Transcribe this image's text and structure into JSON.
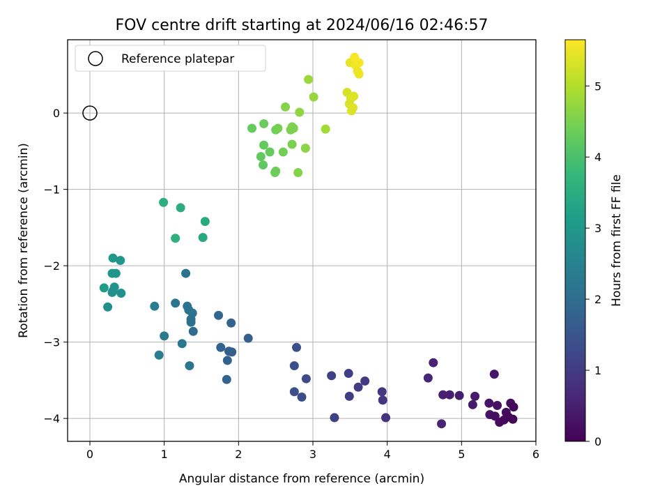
{
  "chart_data": {
    "type": "scatter",
    "title": "FOV centre drift starting at 2024/06/16 02:46:57",
    "xlabel": "Angular distance from reference (arcmin)",
    "ylabel": "Rotation from reference (arcmin)",
    "xlim": [
      -0.3,
      6.0
    ],
    "ylim": [
      -4.3,
      0.96
    ],
    "xticks": [
      0,
      1,
      2,
      3,
      4,
      5,
      6
    ],
    "xtick_labels": [
      "0",
      "1",
      "2",
      "3",
      "4",
      "5",
      "6"
    ],
    "yticks": [
      0,
      -1,
      -2,
      -3,
      -4
    ],
    "ytick_labels": [
      "0",
      "−1",
      "−2",
      "−3",
      "−4"
    ],
    "grid": true,
    "legend": {
      "position": "top-left",
      "entries": [
        {
          "label": "Reference platepar",
          "marker": "open-circle"
        }
      ]
    },
    "reference_point": {
      "x": 0,
      "y": 0
    },
    "colorbar": {
      "label": "Hours from first FF file",
      "colormap": "viridis",
      "range": [
        0,
        5.65
      ],
      "ticks": [
        0,
        1,
        2,
        3,
        4,
        5
      ],
      "tick_labels": [
        "0",
        "1",
        "2",
        "3",
        "4",
        "5"
      ],
      "colors": [
        "#440154",
        "#482878",
        "#3e4989",
        "#31688e",
        "#26828e",
        "#1f9e89",
        "#35b779",
        "#6ece58",
        "#b5de2b",
        "#fde725"
      ]
    },
    "points": [
      {
        "x": 5.44,
        "y": -3.42,
        "t": 0.35
      },
      {
        "x": 5.66,
        "y": -3.8,
        "t": 0.2
      },
      {
        "x": 5.7,
        "y": -3.85,
        "t": 0.1
      },
      {
        "x": 5.37,
        "y": -3.8,
        "t": 0.3
      },
      {
        "x": 5.48,
        "y": -3.83,
        "t": 0.25
      },
      {
        "x": 5.6,
        "y": -3.92,
        "t": 0.15
      },
      {
        "x": 5.38,
        "y": -3.95,
        "t": 0.28
      },
      {
        "x": 5.45,
        "y": -3.97,
        "t": 0.22
      },
      {
        "x": 5.51,
        "y": -4.05,
        "t": 0.18
      },
      {
        "x": 5.57,
        "y": -4.02,
        "t": 0.12
      },
      {
        "x": 5.69,
        "y": -4.01,
        "t": 0.05
      },
      {
        "x": 5.63,
        "y": -3.98,
        "t": 0.08
      },
      {
        "x": 4.62,
        "y": -3.27,
        "t": 0.55
      },
      {
        "x": 4.55,
        "y": -3.47,
        "t": 0.6
      },
      {
        "x": 4.75,
        "y": -3.69,
        "t": 0.5
      },
      {
        "x": 4.84,
        "y": -3.69,
        "t": 0.48
      },
      {
        "x": 4.97,
        "y": -3.7,
        "t": 0.45
      },
      {
        "x": 5.18,
        "y": -3.71,
        "t": 0.4
      },
      {
        "x": 5.15,
        "y": -3.82,
        "t": 0.42
      },
      {
        "x": 4.73,
        "y": -4.07,
        "t": 0.58
      },
      {
        "x": 3.48,
        "y": -3.41,
        "t": 1.05
      },
      {
        "x": 3.25,
        "y": -3.44,
        "t": 1.1
      },
      {
        "x": 3.7,
        "y": -3.51,
        "t": 0.98
      },
      {
        "x": 3.61,
        "y": -3.59,
        "t": 1.0
      },
      {
        "x": 3.93,
        "y": -3.65,
        "t": 0.9
      },
      {
        "x": 3.94,
        "y": -3.76,
        "t": 0.88
      },
      {
        "x": 3.49,
        "y": -3.71,
        "t": 1.02
      },
      {
        "x": 3.29,
        "y": -3.99,
        "t": 1.08
      },
      {
        "x": 3.98,
        "y": -3.99,
        "t": 0.85
      },
      {
        "x": 2.78,
        "y": -3.07,
        "t": 1.35
      },
      {
        "x": 2.75,
        "y": -3.31,
        "t": 1.4
      },
      {
        "x": 2.91,
        "y": -3.48,
        "t": 1.3
      },
      {
        "x": 2.75,
        "y": -3.65,
        "t": 1.38
      },
      {
        "x": 2.85,
        "y": -3.72,
        "t": 1.33
      },
      {
        "x": 1.73,
        "y": -2.65,
        "t": 1.85
      },
      {
        "x": 1.9,
        "y": -2.75,
        "t": 1.8
      },
      {
        "x": 2.13,
        "y": -2.95,
        "t": 1.7
      },
      {
        "x": 1.76,
        "y": -3.07,
        "t": 1.75
      },
      {
        "x": 1.87,
        "y": -3.12,
        "t": 1.72
      },
      {
        "x": 1.91,
        "y": -3.13,
        "t": 1.7
      },
      {
        "x": 1.85,
        "y": -3.24,
        "t": 1.78
      },
      {
        "x": 1.84,
        "y": -3.49,
        "t": 1.82
      },
      {
        "x": 1.29,
        "y": -2.1,
        "t": 2.15
      },
      {
        "x": 1.15,
        "y": -2.49,
        "t": 2.2
      },
      {
        "x": 0.87,
        "y": -2.53,
        "t": 2.4
      },
      {
        "x": 1.31,
        "y": -2.53,
        "t": 2.18
      },
      {
        "x": 1.33,
        "y": -2.58,
        "t": 2.16
      },
      {
        "x": 1.38,
        "y": -2.62,
        "t": 2.12
      },
      {
        "x": 1.36,
        "y": -2.7,
        "t": 2.1
      },
      {
        "x": 1.36,
        "y": -2.74,
        "t": 2.05
      },
      {
        "x": 1.39,
        "y": -2.86,
        "t": 2.0
      },
      {
        "x": 1.0,
        "y": -2.92,
        "t": 2.3
      },
      {
        "x": 1.24,
        "y": -3.02,
        "t": 2.25
      },
      {
        "x": 0.93,
        "y": -3.17,
        "t": 2.38
      },
      {
        "x": 1.34,
        "y": -3.31,
        "t": 2.22
      },
      {
        "x": 0.31,
        "y": -1.9,
        "t": 3.0
      },
      {
        "x": 0.41,
        "y": -1.93,
        "t": 2.95
      },
      {
        "x": 0.3,
        "y": -2.1,
        "t": 2.98
      },
      {
        "x": 0.35,
        "y": -2.1,
        "t": 2.92
      },
      {
        "x": 0.19,
        "y": -2.29,
        "t": 3.05
      },
      {
        "x": 0.33,
        "y": -2.28,
        "t": 2.9
      },
      {
        "x": 0.31,
        "y": -2.33,
        "t": 2.88
      },
      {
        "x": 0.3,
        "y": -2.35,
        "t": 2.85
      },
      {
        "x": 0.42,
        "y": -2.36,
        "t": 2.82
      },
      {
        "x": 0.24,
        "y": -2.54,
        "t": 2.8
      },
      {
        "x": 0.99,
        "y": -1.17,
        "t": 3.55
      },
      {
        "x": 1.22,
        "y": -1.24,
        "t": 3.5
      },
      {
        "x": 1.55,
        "y": -1.42,
        "t": 3.45
      },
      {
        "x": 1.15,
        "y": -1.64,
        "t": 3.6
      },
      {
        "x": 1.52,
        "y": -1.63,
        "t": 3.4
      },
      {
        "x": 2.94,
        "y": 0.44,
        "t": 4.8
      },
      {
        "x": 3.01,
        "y": 0.21,
        "t": 4.75
      },
      {
        "x": 2.63,
        "y": 0.08,
        "t": 4.6
      },
      {
        "x": 2.82,
        "y": 0.01,
        "t": 4.7
      },
      {
        "x": 2.18,
        "y": -0.2,
        "t": 4.3
      },
      {
        "x": 2.34,
        "y": -0.14,
        "t": 4.35
      },
      {
        "x": 2.5,
        "y": -0.22,
        "t": 4.4
      },
      {
        "x": 2.53,
        "y": -0.2,
        "t": 4.45
      },
      {
        "x": 2.72,
        "y": -0.18,
        "t": 4.55
      },
      {
        "x": 2.7,
        "y": -0.22,
        "t": 4.5
      },
      {
        "x": 2.74,
        "y": -0.2,
        "t": 4.52
      },
      {
        "x": 3.17,
        "y": -0.21,
        "t": 4.85
      },
      {
        "x": 2.34,
        "y": -0.42,
        "t": 4.28
      },
      {
        "x": 2.42,
        "y": -0.51,
        "t": 4.32
      },
      {
        "x": 2.6,
        "y": -0.51,
        "t": 4.42
      },
      {
        "x": 2.72,
        "y": -0.41,
        "t": 4.5
      },
      {
        "x": 2.9,
        "y": -0.46,
        "t": 4.65
      },
      {
        "x": 2.3,
        "y": -0.57,
        "t": 4.25
      },
      {
        "x": 2.33,
        "y": -0.68,
        "t": 4.22
      },
      {
        "x": 2.5,
        "y": -0.76,
        "t": 4.38
      },
      {
        "x": 2.49,
        "y": -0.78,
        "t": 4.36
      },
      {
        "x": 2.8,
        "y": -0.78,
        "t": 4.58
      },
      {
        "x": 3.5,
        "y": 0.66,
        "t": 5.45
      },
      {
        "x": 3.56,
        "y": 0.73,
        "t": 5.6
      },
      {
        "x": 3.57,
        "y": 0.63,
        "t": 5.55
      },
      {
        "x": 3.62,
        "y": 0.66,
        "t": 5.58
      },
      {
        "x": 3.6,
        "y": 0.55,
        "t": 5.5
      },
      {
        "x": 3.62,
        "y": 0.51,
        "t": 5.52
      },
      {
        "x": 3.46,
        "y": 0.27,
        "t": 5.3
      },
      {
        "x": 3.51,
        "y": 0.19,
        "t": 5.35
      },
      {
        "x": 3.55,
        "y": 0.22,
        "t": 5.38
      },
      {
        "x": 3.49,
        "y": 0.12,
        "t": 5.32
      },
      {
        "x": 3.54,
        "y": 0.07,
        "t": 5.4
      },
      {
        "x": 3.52,
        "y": 0.03,
        "t": 5.36
      }
    ]
  }
}
